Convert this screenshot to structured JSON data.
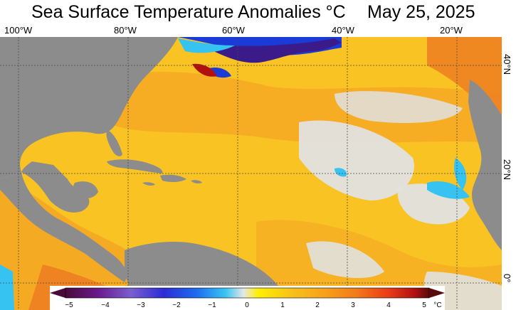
{
  "header": {
    "title": "Sea Surface Temperature Anomalies °C",
    "date": "May 25, 2025"
  },
  "axes": {
    "longitude_labels": [
      "100°W",
      "80°W",
      "60°W",
      "40°W",
      "20°W"
    ],
    "latitude_labels": [
      "40°N",
      "20°N",
      "0°"
    ]
  },
  "colorbar": {
    "unit": "°C",
    "ticks": [
      "−5",
      "−4",
      "−3",
      "−2",
      "−1",
      "0",
      "1",
      "2",
      "3",
      "4",
      "5"
    ],
    "colors": [
      "#4b0a3a",
      "#6a1a8c",
      "#7a5fcf",
      "#2b2bd6",
      "#1e6cf0",
      "#39c4f2",
      "#e6e6e6",
      "#fff000",
      "#f7c21a",
      "#f7a21a",
      "#f27a1a",
      "#e83b16",
      "#b01010",
      "#5a0a0a"
    ]
  },
  "map": {
    "colors": {
      "ocean_warm": "#f8c323",
      "ocean_warmer": "#f5a623",
      "ocean_hot": "#ee7e22",
      "ocean_neutral": "#e1e1e1",
      "ocean_cool": "#36c3f1",
      "ocean_cold": "#1a3bd8",
      "ocean_very_cold": "#3b1b8a",
      "land": "#8c8c8c",
      "grid": "#4a4a4a"
    }
  }
}
